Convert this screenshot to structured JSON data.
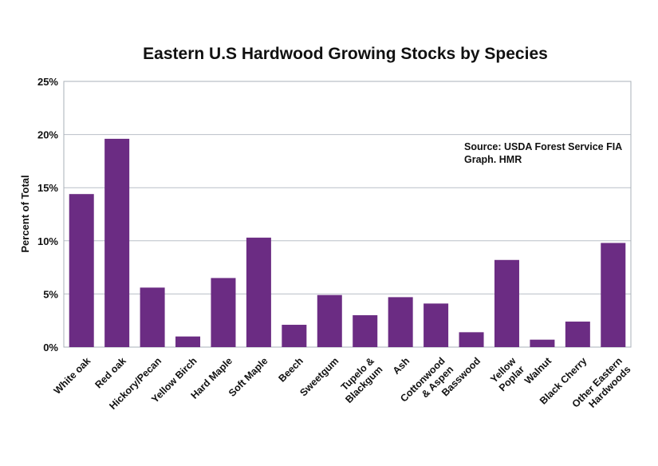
{
  "chart_data": {
    "type": "bar",
    "title": "Eastern U.S Hardwood Growing Stocks by Species",
    "xlabel": "",
    "ylabel": "Percent of Total",
    "ylim": [
      0,
      25
    ],
    "yticks": [
      0,
      5,
      10,
      15,
      20,
      25
    ],
    "ytick_labels": [
      "0%",
      "5%",
      "10%",
      "15%",
      "20%",
      "25%"
    ],
    "grid": true,
    "bar_color": "#6b2c83",
    "categories": [
      "White oak",
      "Red oak",
      "Hickory/Pecan",
      "Yellow Birch",
      "Hard Maple",
      "Soft Maple",
      "Beech",
      "Sweetgum",
      "Tupelo & Blackgum",
      "Ash",
      "Cottonwood & Aspen",
      "Basswood",
      "Yellow Poplar",
      "Walnut",
      "Black Cherry",
      "Other Eastern Hardwoods"
    ],
    "category_lines": [
      [
        "White oak"
      ],
      [
        "Red oak"
      ],
      [
        "Hickory/Pecan"
      ],
      [
        "Yellow Birch"
      ],
      [
        "Hard Maple"
      ],
      [
        "Soft Maple"
      ],
      [
        "Beech"
      ],
      [
        "Sweetgum"
      ],
      [
        "Tupelo &",
        "Blackgum"
      ],
      [
        "Ash"
      ],
      [
        "Cottonwood",
        "& Aspen"
      ],
      [
        "Basswood"
      ],
      [
        "Yellow",
        "Poplar"
      ],
      [
        "Walnut"
      ],
      [
        "Black Cherry"
      ],
      [
        "Other Eastern",
        "Hardwoods"
      ]
    ],
    "values": [
      14.4,
      19.6,
      5.6,
      1.0,
      6.5,
      10.3,
      2.1,
      4.9,
      3.0,
      4.7,
      4.1,
      1.4,
      8.2,
      0.7,
      2.4,
      9.8
    ],
    "annotation": {
      "line1": "Source: USDA Forest Service FIA",
      "line2": "Graph. HMR"
    }
  }
}
